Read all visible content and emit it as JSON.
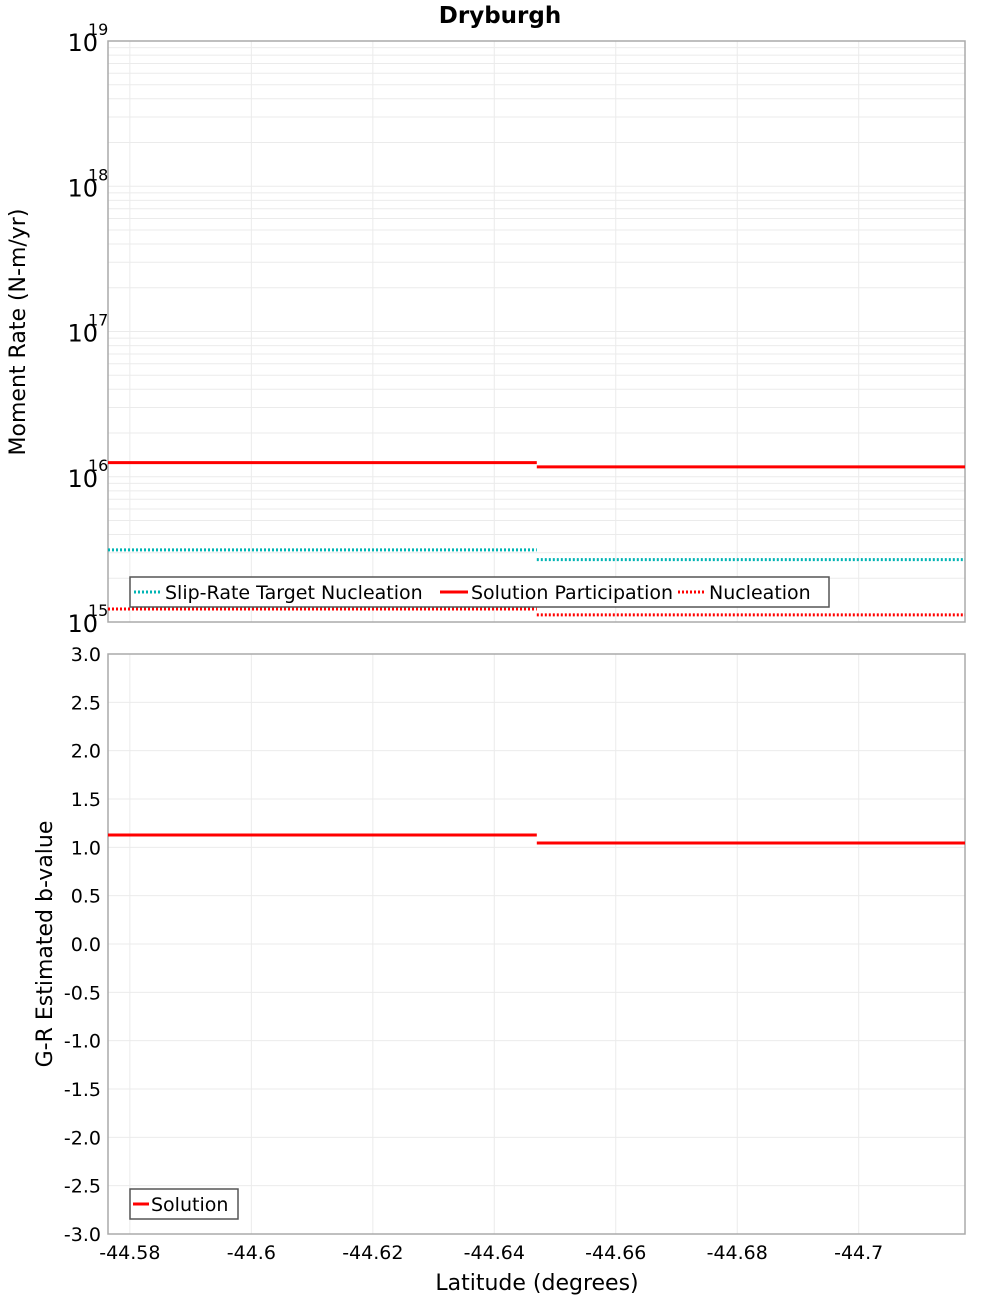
{
  "chart_data": [
    {
      "type": "line",
      "title": "Dryburgh",
      "xlabel": "Latitude (degrees)",
      "ylabel": "Moment Rate (N-m/yr)",
      "yscale": "log",
      "ylim": [
        1000000000000000.0,
        1e+19
      ],
      "xlim": [
        -44.5764,
        -44.7175
      ],
      "x_inverted": true,
      "grid": true,
      "legend_position": "lower-left",
      "y_ticks": [
        {
          "base": "10",
          "exp": "19"
        },
        {
          "base": "10",
          "exp": "18"
        },
        {
          "base": "10",
          "exp": "17"
        },
        {
          "base": "10",
          "exp": "16"
        },
        {
          "base": "10",
          "exp": "15"
        }
      ],
      "series": [
        {
          "name": "Slip-Rate Target Nucleation",
          "color": "#00b4b4",
          "style": "dotted",
          "x": [
            -44.5764,
            -44.647,
            -44.647,
            -44.7175
          ],
          "values": [
            3140000000000000.0,
            3140000000000000.0,
            2690000000000000.0,
            2690000000000000.0
          ]
        },
        {
          "name": "Solution Participation",
          "color": "#ff0000",
          "style": "solid",
          "x": [
            -44.5764,
            -44.647,
            -44.647,
            -44.7175
          ],
          "values": [
            1.25e+16,
            1.25e+16,
            1.17e+16,
            1.17e+16
          ]
        },
        {
          "name": "Nucleation",
          "color": "#ff0000",
          "style": "dotted",
          "x": [
            -44.5764,
            -44.647,
            -44.647,
            -44.7175
          ],
          "values": [
            1230000000000000.0,
            1230000000000000.0,
            1120000000000000.0,
            1120000000000000.0
          ]
        }
      ]
    },
    {
      "type": "line",
      "title": "",
      "xlabel": "Latitude (degrees)",
      "ylabel": "G-R Estimated b-value",
      "ylim": [
        -3.0,
        3.0
      ],
      "xlim": [
        -44.5764,
        -44.7175
      ],
      "x_inverted": true,
      "grid": true,
      "legend_position": "lower-left",
      "y_ticks": [
        "3.0",
        "2.5",
        "2.0",
        "1.5",
        "1.0",
        "0.5",
        "0.0",
        "-0.5",
        "-1.0",
        "-1.5",
        "-2.0",
        "-2.5",
        "-3.0"
      ],
      "x_ticks": [
        "-44.58",
        "-44.6",
        "-44.62",
        "-44.64",
        "-44.66",
        "-44.68",
        "-44.7"
      ],
      "series": [
        {
          "name": "Solution",
          "color": "#ff0000",
          "style": "solid",
          "x": [
            -44.5764,
            -44.647,
            -44.647,
            -44.7175
          ],
          "values": [
            1.128,
            1.128,
            1.045,
            1.045
          ]
        }
      ]
    }
  ]
}
